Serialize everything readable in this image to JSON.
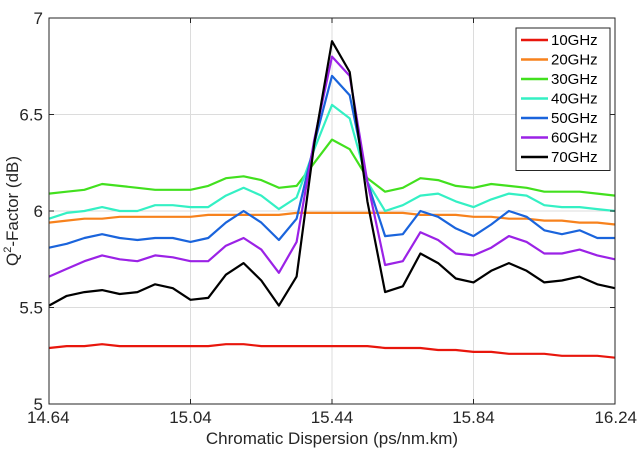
{
  "chart_data": {
    "type": "line",
    "title": "",
    "xlabel": "Chromatic Dispersion (ps/nm.km)",
    "ylabel_main": "Q",
    "ylabel_sup": "2",
    "ylabel_rest": "-Factor (dB)",
    "xlim": [
      14.64,
      16.24
    ],
    "ylim": [
      5,
      7
    ],
    "xticks": [
      14.64,
      15.04,
      15.44,
      15.84,
      16.24
    ],
    "xtick_labels": [
      "14.64",
      "15.04",
      "15.44",
      "15.84",
      "16.24"
    ],
    "yticks": [
      5,
      5.5,
      6,
      6.5,
      7
    ],
    "ytick_labels": [
      "5",
      "5.5",
      "6",
      "6.5",
      "7"
    ],
    "grid": true,
    "legend_position": "top-right",
    "x": [
      14.64,
      14.69,
      14.74,
      14.79,
      14.84,
      14.89,
      14.94,
      14.99,
      15.04,
      15.09,
      15.14,
      15.19,
      15.24,
      15.29,
      15.34,
      15.39,
      15.44,
      15.49,
      15.54,
      15.59,
      15.64,
      15.69,
      15.74,
      15.79,
      15.84,
      15.89,
      15.94,
      15.99,
      16.04,
      16.09,
      16.14,
      16.19,
      16.24
    ],
    "series": [
      {
        "name": "10GHz",
        "color": "#e8160c",
        "values": [
          5.29,
          5.3,
          5.3,
          5.31,
          5.3,
          5.3,
          5.3,
          5.3,
          5.3,
          5.3,
          5.31,
          5.31,
          5.3,
          5.3,
          5.3,
          5.3,
          5.3,
          5.3,
          5.3,
          5.29,
          5.29,
          5.29,
          5.28,
          5.28,
          5.27,
          5.27,
          5.26,
          5.26,
          5.26,
          5.25,
          5.25,
          5.25,
          5.24
        ]
      },
      {
        "name": "20GHz",
        "color": "#f7821d",
        "values": [
          5.94,
          5.95,
          5.96,
          5.96,
          5.97,
          5.97,
          5.97,
          5.97,
          5.97,
          5.98,
          5.98,
          5.98,
          5.98,
          5.98,
          5.99,
          5.99,
          5.99,
          5.99,
          5.99,
          5.99,
          5.99,
          5.98,
          5.98,
          5.98,
          5.97,
          5.97,
          5.96,
          5.96,
          5.95,
          5.95,
          5.94,
          5.94,
          5.93
        ]
      },
      {
        "name": "30GHz",
        "color": "#42e01e",
        "values": [
          6.09,
          6.1,
          6.11,
          6.14,
          6.13,
          6.12,
          6.11,
          6.11,
          6.11,
          6.13,
          6.17,
          6.18,
          6.16,
          6.12,
          6.13,
          6.25,
          6.37,
          6.32,
          6.17,
          6.1,
          6.12,
          6.17,
          6.16,
          6.13,
          6.12,
          6.14,
          6.13,
          6.12,
          6.1,
          6.1,
          6.1,
          6.09,
          6.08
        ]
      },
      {
        "name": "40GHz",
        "color": "#34f0c4",
        "values": [
          5.96,
          5.99,
          6.0,
          6.02,
          6.0,
          6.0,
          6.03,
          6.03,
          6.02,
          6.02,
          6.08,
          6.12,
          6.08,
          6.01,
          6.07,
          6.32,
          6.55,
          6.48,
          6.15,
          6.0,
          6.03,
          6.08,
          6.09,
          6.05,
          6.02,
          6.06,
          6.09,
          6.08,
          6.03,
          6.02,
          6.02,
          6.01,
          6.0
        ]
      },
      {
        "name": "50GHz",
        "color": "#1a64dc",
        "values": [
          5.81,
          5.83,
          5.86,
          5.88,
          5.86,
          5.85,
          5.86,
          5.86,
          5.84,
          5.86,
          5.94,
          6.0,
          5.94,
          5.85,
          5.96,
          6.35,
          6.7,
          6.6,
          6.15,
          5.87,
          5.88,
          6.0,
          5.97,
          5.91,
          5.87,
          5.93,
          6.0,
          5.97,
          5.9,
          5.88,
          5.9,
          5.86,
          5.86
        ]
      },
      {
        "name": "60GHz",
        "color": "#9b22e6",
        "values": [
          5.66,
          5.7,
          5.74,
          5.77,
          5.75,
          5.74,
          5.77,
          5.76,
          5.74,
          5.74,
          5.82,
          5.86,
          5.8,
          5.68,
          5.84,
          6.37,
          6.8,
          6.7,
          6.15,
          5.72,
          5.74,
          5.89,
          5.85,
          5.78,
          5.77,
          5.81,
          5.87,
          5.84,
          5.78,
          5.78,
          5.8,
          5.77,
          5.75
        ]
      },
      {
        "name": "70GHz",
        "color": "#000000",
        "values": [
          5.51,
          5.56,
          5.58,
          5.59,
          5.57,
          5.58,
          5.62,
          5.6,
          5.54,
          5.55,
          5.67,
          5.73,
          5.64,
          5.51,
          5.66,
          6.35,
          6.88,
          6.72,
          6.05,
          5.58,
          5.61,
          5.78,
          5.73,
          5.65,
          5.63,
          5.69,
          5.73,
          5.69,
          5.63,
          5.64,
          5.66,
          5.62,
          5.6
        ]
      }
    ]
  }
}
